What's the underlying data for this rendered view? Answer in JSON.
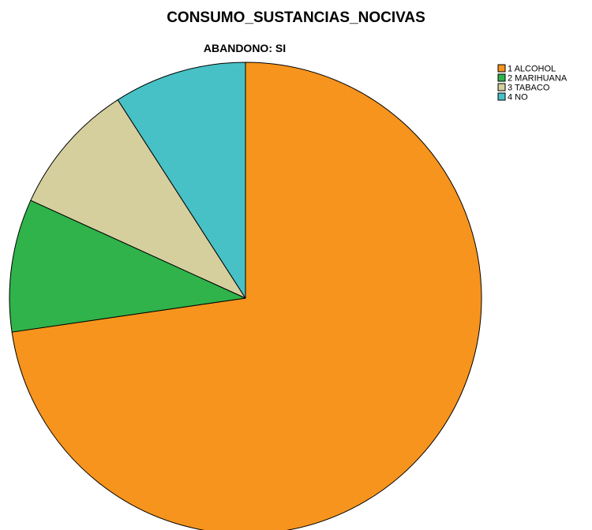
{
  "chart_data": {
    "type": "pie",
    "title": "CONSUMO_SUSTANCIAS_NOCIVAS",
    "subtitle": "ABANDONO: SI",
    "legend_position": "top-right",
    "categories": [
      "1 ALCOHOL",
      "2 MARIHUANA",
      "3 TABACO",
      "4 NO"
    ],
    "values": [
      72.7,
      9.1,
      9.1,
      9.1
    ],
    "colors": [
      "#F7941D",
      "#2FB34A",
      "#D5CF9E",
      "#47C1C5"
    ],
    "start_angle_deg": 0,
    "direction": "clockwise"
  }
}
